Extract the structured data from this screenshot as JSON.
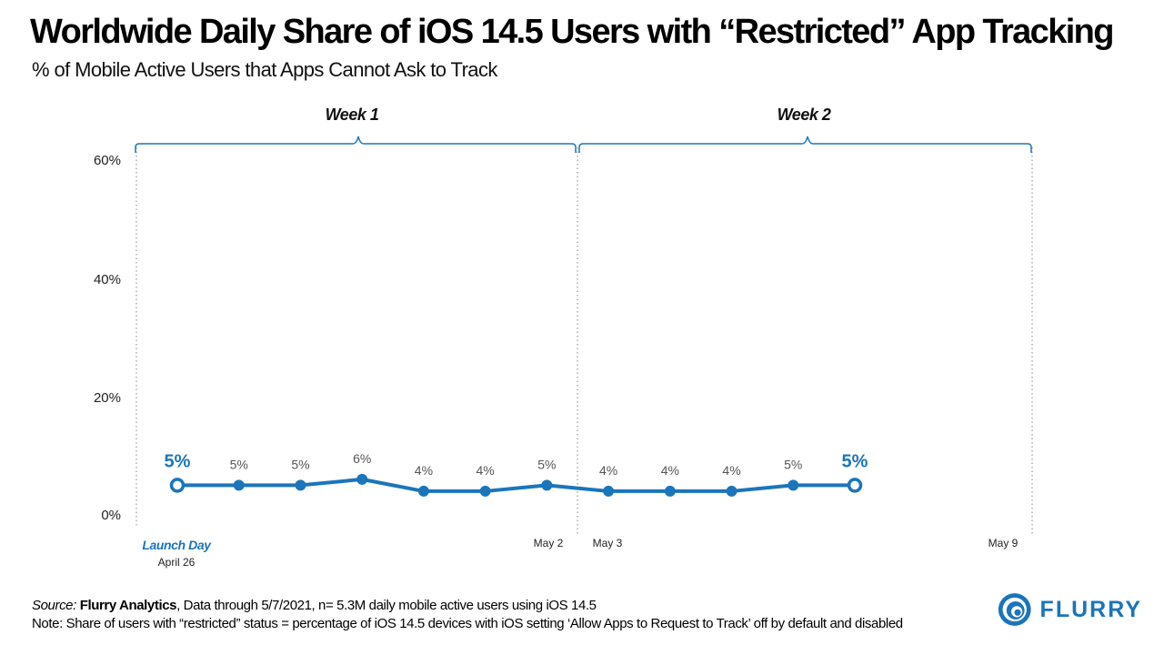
{
  "header": {
    "title": "Worldwide Daily Share of iOS 14.5 Users with “Restricted” App Tracking",
    "subtitle": "% of Mobile Active Users that Apps Cannot Ask to Track"
  },
  "chart_data": {
    "type": "line",
    "ylim": [
      0,
      60
    ],
    "yticks": [
      "0%",
      "20%",
      "40%",
      "60%"
    ],
    "grid": false,
    "color": "#1b75bb",
    "series": [
      {
        "values": [
          5,
          5,
          5,
          6,
          4,
          4,
          5,
          4,
          4,
          4,
          5,
          5
        ],
        "labels": [
          "5%",
          "5%",
          "5%",
          "6%",
          "4%",
          "4%",
          "5%",
          "4%",
          "4%",
          "4%",
          "5%",
          "5%"
        ]
      }
    ],
    "weeks": [
      "Week 1",
      "Week 2"
    ],
    "xlabels": {
      "launch_day": "Launch Day",
      "start_date": "April 26",
      "week1_end": "May 2",
      "week2_start": "May 3",
      "week2_end": "May 9"
    }
  },
  "footer": {
    "source_label": "Source:",
    "source_name": "Flurry Analytics",
    "source_rest": ", Data through 5/7/2021, n= 5.3M daily mobile active users using iOS 14.5",
    "note": "Note: Share of users with “restricted” status = percentage of iOS 14.5 devices with iOS setting ‘Allow Apps to Request to Track’ off by default and disabled"
  },
  "logo": {
    "text": "FLURRY",
    "icon": "flurry-swirl-icon"
  }
}
